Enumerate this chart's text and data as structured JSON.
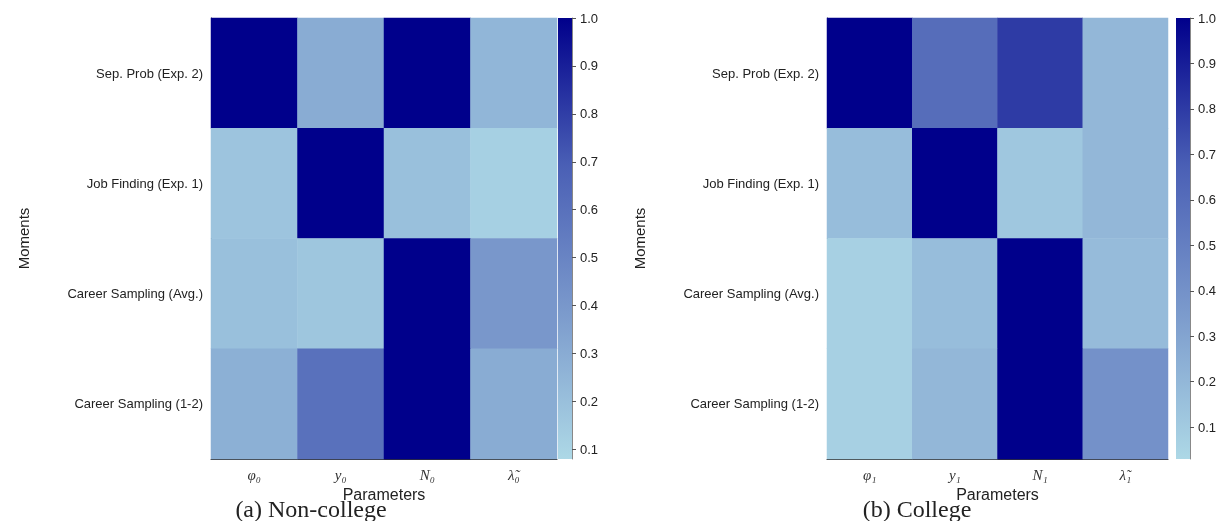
{
  "chart_data": [
    {
      "type": "heatmap",
      "title": "(a) Non-college",
      "xlabel": "Parameters",
      "ylabel": "Moments",
      "categories": [
        "φ₀",
        "y₀",
        "N₀",
        "λ̃₀"
      ],
      "y_categories": [
        "Sep. Prob (Exp. 2)",
        "Job Finding (Exp. 1)",
        "Career Sampling (Avg.)",
        "Career Sampling (1-2)"
      ],
      "cells": [
        [
          1.0,
          0.3,
          1.0,
          0.25
        ],
        [
          0.18,
          1.0,
          0.2,
          0.12
        ],
        [
          0.2,
          0.17,
          1.0,
          0.4
        ],
        [
          0.28,
          0.6,
          1.0,
          0.3
        ]
      ],
      "clim": [
        0.08,
        1.0
      ],
      "cticks": [
        {
          "value": 0.1,
          "label": "0.1"
        },
        {
          "value": 0.2,
          "label": "0.2"
        },
        {
          "value": 0.3,
          "label": "0.3"
        },
        {
          "value": 0.4,
          "label": "0.4"
        },
        {
          "value": 0.5,
          "label": "0.5"
        },
        {
          "value": 0.6,
          "label": "0.6"
        },
        {
          "value": 0.7,
          "label": "0.7"
        },
        {
          "value": 0.8,
          "label": "0.8"
        },
        {
          "value": 0.9,
          "label": "0.9"
        },
        {
          "value": 1.0,
          "label": "1.0"
        }
      ],
      "colors": [
        "#add8e6",
        "#7b9acc",
        "#4a5fb5",
        "#00008b"
      ]
    },
    {
      "type": "heatmap",
      "title": "(b) College",
      "xlabel": "Parameters",
      "ylabel": "Moments",
      "categories": [
        "φ₁",
        "y₁",
        "N₁",
        "λ̃₁"
      ],
      "y_categories": [
        "Sep. Prob (Exp. 2)",
        "Job Finding (Exp. 1)",
        "Career Sampling (Avg.)",
        "Career Sampling (1-2)"
      ],
      "cells": [
        [
          1.0,
          0.6,
          0.8,
          0.2
        ],
        [
          0.17,
          1.0,
          0.12,
          0.2
        ],
        [
          0.07,
          0.17,
          1.0,
          0.18
        ],
        [
          0.07,
          0.2,
          1.0,
          0.4
        ]
      ],
      "clim": [
        0.03,
        1.0
      ],
      "cticks": [
        {
          "value": 0.1,
          "label": "0.1"
        },
        {
          "value": 0.2,
          "label": "0.2"
        },
        {
          "value": 0.3,
          "label": "0.3"
        },
        {
          "value": 0.4,
          "label": "0.4"
        },
        {
          "value": 0.5,
          "label": "0.5"
        },
        {
          "value": 0.6,
          "label": "0.6"
        },
        {
          "value": 0.7,
          "label": "0.7"
        },
        {
          "value": 0.8,
          "label": "0.8"
        },
        {
          "value": 0.9,
          "label": "0.9"
        },
        {
          "value": 1.0,
          "label": "1.0"
        }
      ],
      "colors": [
        "#add8e6",
        "#7b9acc",
        "#4a5fb5",
        "#00008b"
      ]
    }
  ]
}
